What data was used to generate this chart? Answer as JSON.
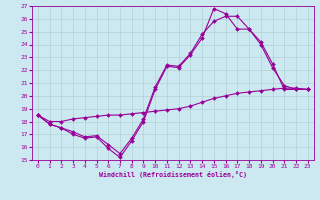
{
  "xlabel": "Windchill (Refroidissement éolien,°C)",
  "bg_color": "#cce8f0",
  "line_color": "#990099",
  "grid_color": "#aacccc",
  "xlim": [
    -0.5,
    23.5
  ],
  "ylim": [
    15,
    27
  ],
  "yticks": [
    15,
    16,
    17,
    18,
    19,
    20,
    21,
    22,
    23,
    24,
    25,
    26,
    27
  ],
  "xticks": [
    0,
    1,
    2,
    3,
    4,
    5,
    6,
    7,
    8,
    9,
    10,
    11,
    12,
    13,
    14,
    15,
    16,
    17,
    18,
    19,
    20,
    21,
    22,
    23
  ],
  "series": [
    {
      "x": [
        0,
        1,
        2,
        3,
        4,
        5,
        6,
        7,
        8,
        9,
        10,
        11,
        12,
        13,
        14,
        15,
        16,
        17,
        18,
        19,
        20,
        21,
        22,
        23
      ],
      "y": [
        18.5,
        17.8,
        17.5,
        17.0,
        16.7,
        16.8,
        15.9,
        15.2,
        16.5,
        18.0,
        20.5,
        22.3,
        22.2,
        23.2,
        24.5,
        26.8,
        26.4,
        25.2,
        25.2,
        24.0,
        22.2,
        20.8,
        20.5,
        20.5
      ]
    },
    {
      "x": [
        0,
        1,
        2,
        3,
        4,
        5,
        6,
        7,
        8,
        9,
        10,
        11,
        12,
        13,
        14,
        15,
        16,
        17,
        18,
        19,
        20,
        21,
        22,
        23
      ],
      "y": [
        18.5,
        17.8,
        17.5,
        17.2,
        16.8,
        16.9,
        16.2,
        15.5,
        16.7,
        18.2,
        20.7,
        22.4,
        22.3,
        23.3,
        24.8,
        25.8,
        26.2,
        26.2,
        25.2,
        24.2,
        22.5,
        20.5,
        20.5,
        20.5
      ]
    },
    {
      "x": [
        0,
        1,
        2,
        3,
        4,
        5,
        6,
        7,
        8,
        9,
        10,
        11,
        12,
        13,
        14,
        15,
        16,
        17,
        18,
        19,
        20,
        21,
        22,
        23
      ],
      "y": [
        18.5,
        18.0,
        18.0,
        18.2,
        18.3,
        18.4,
        18.5,
        18.5,
        18.6,
        18.7,
        18.8,
        18.9,
        19.0,
        19.2,
        19.5,
        19.8,
        20.0,
        20.2,
        20.3,
        20.4,
        20.5,
        20.6,
        20.6,
        20.5
      ]
    }
  ]
}
